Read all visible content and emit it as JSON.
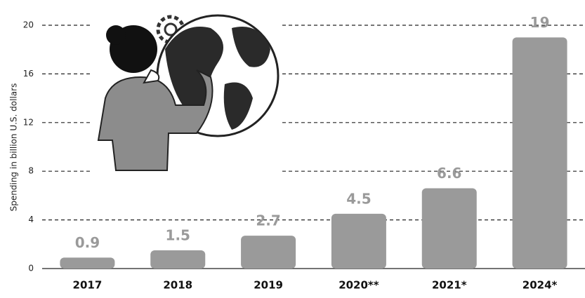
{
  "chart_data": {
    "type": "bar",
    "y_label": "Spending in billion U.S. dollars",
    "categories": [
      "2017",
      "2018",
      "2019",
      "2020**",
      "2021*",
      "2024*"
    ],
    "values": [
      0.9,
      1.5,
      2.7,
      4.5,
      6.6,
      19
    ],
    "color": "#9a9a9a",
    "ylim": [
      0,
      20
    ],
    "yticks": [
      0,
      4,
      8,
      12,
      16,
      20
    ],
    "grid": true
  }
}
